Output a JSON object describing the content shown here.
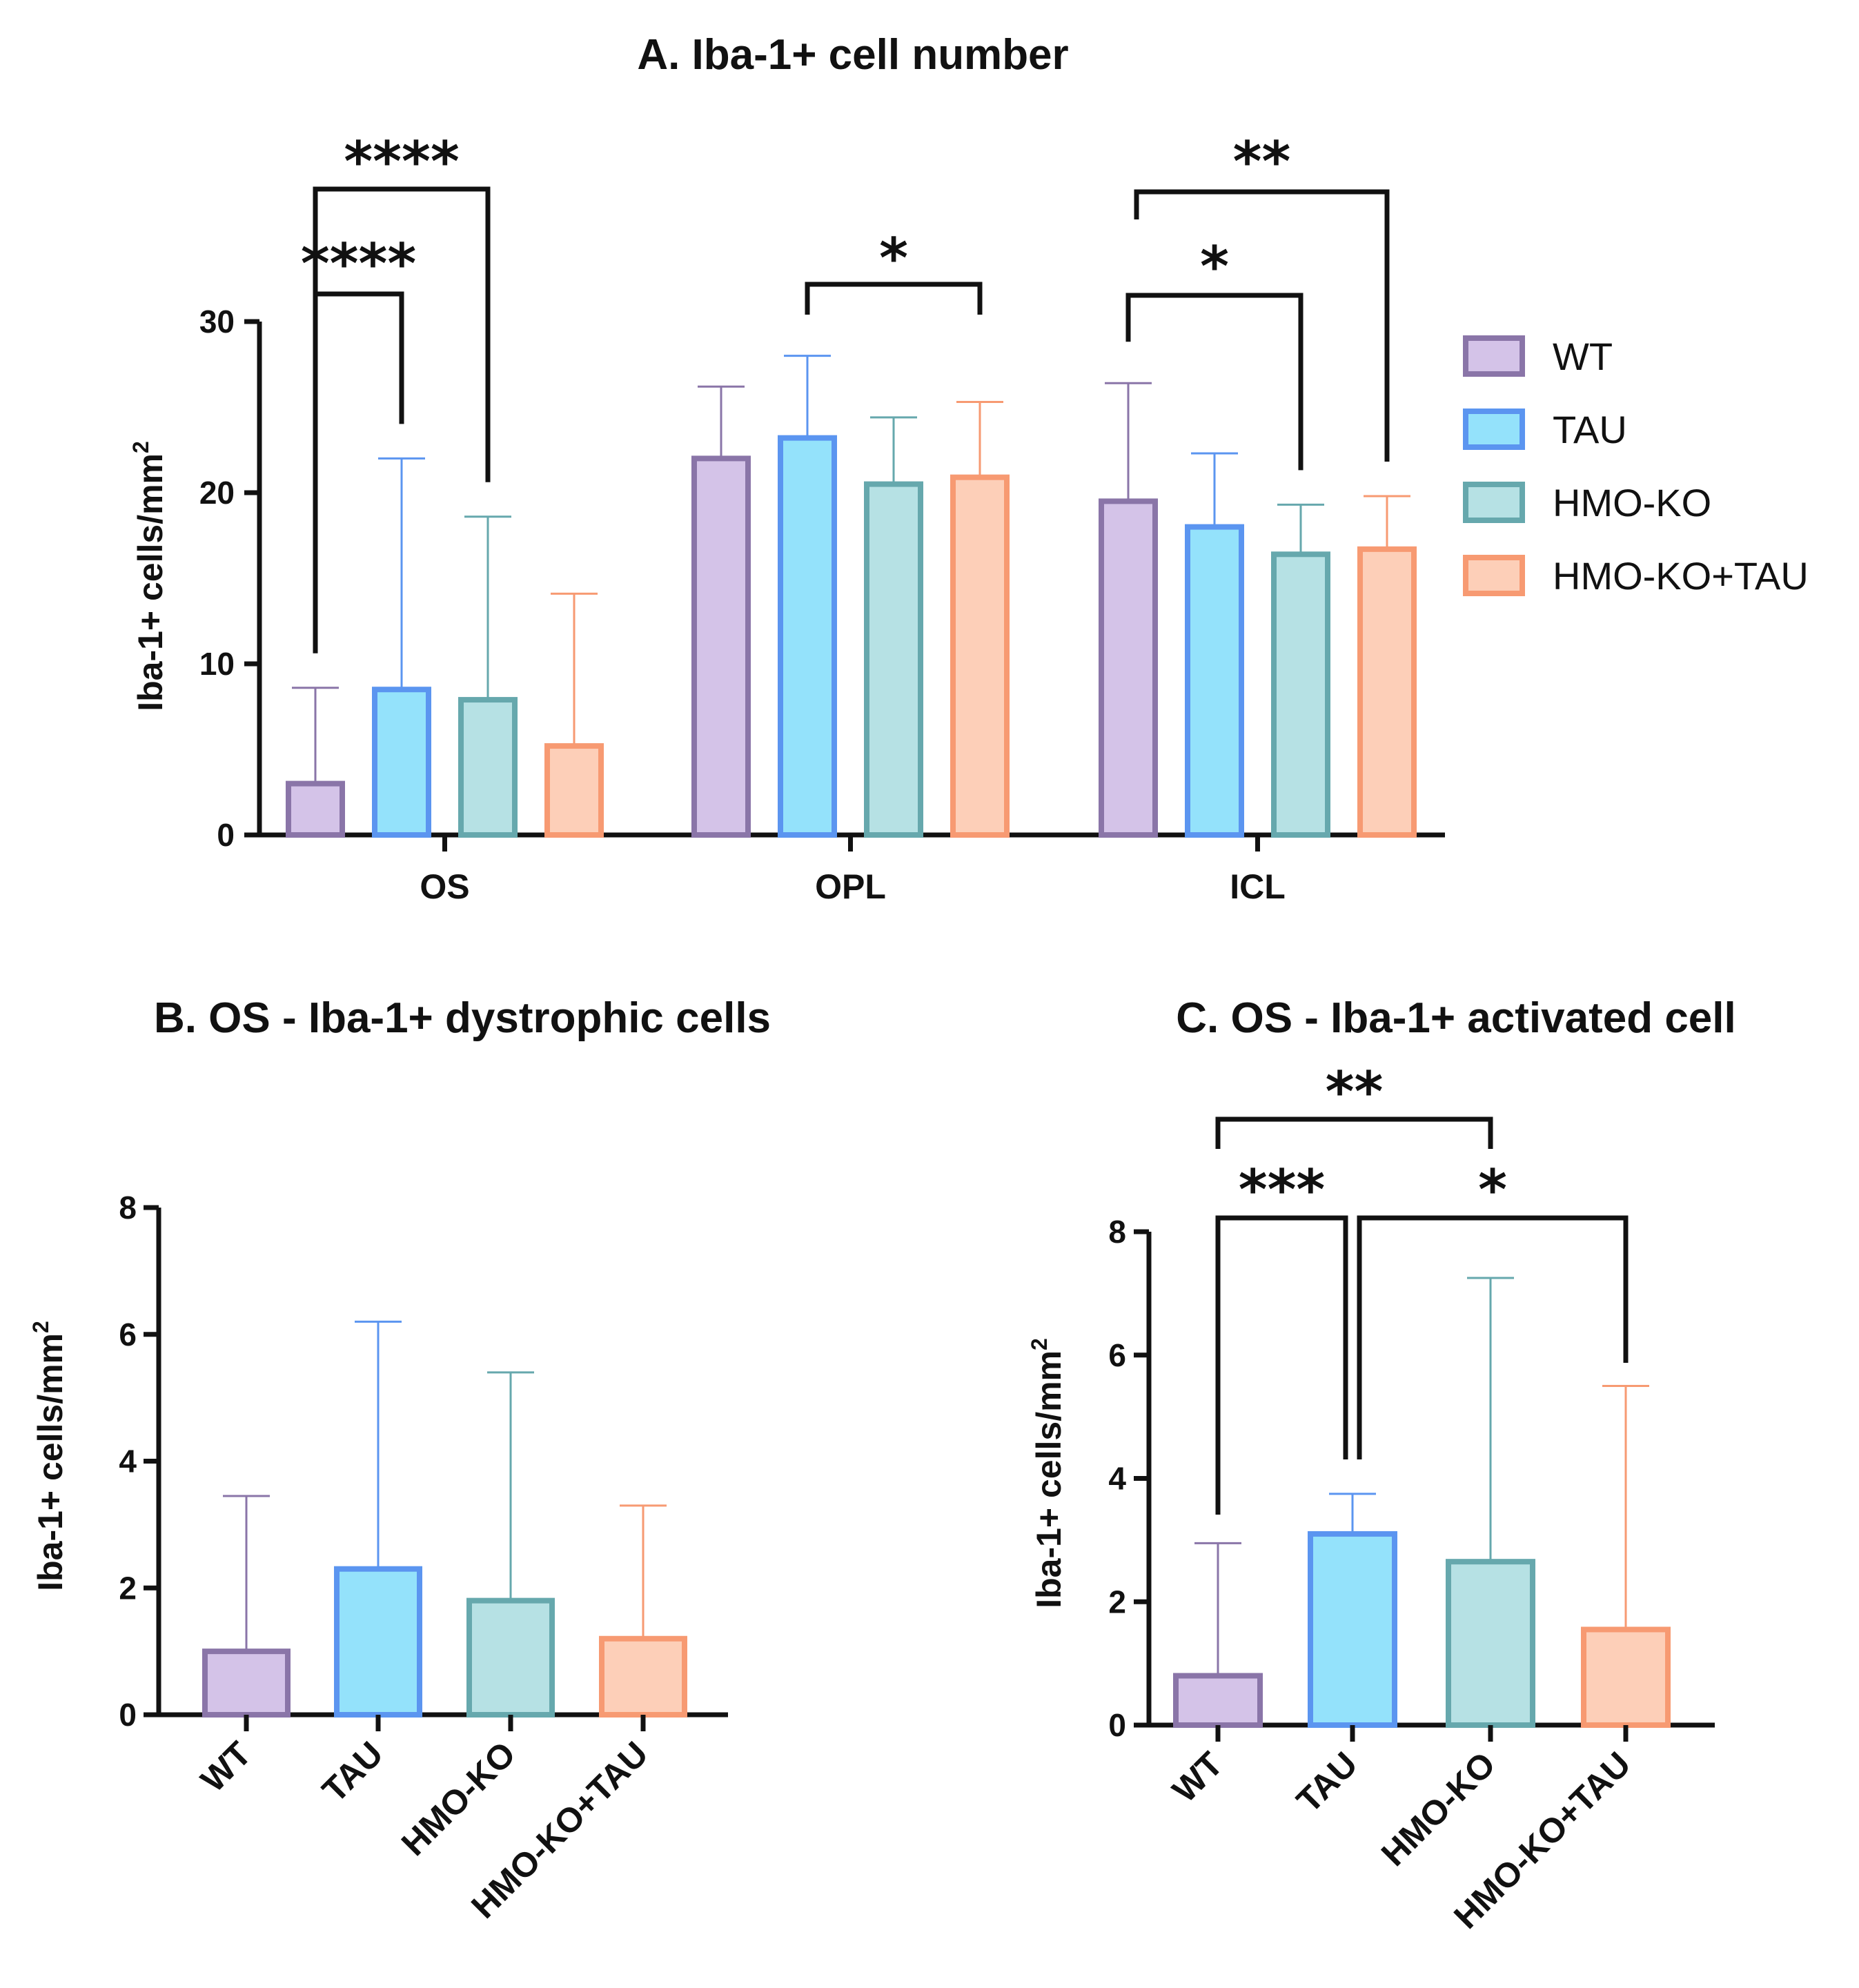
{
  "colors": {
    "WT": {
      "fill": "#d4c3e8",
      "stroke": "#8a75a8"
    },
    "TAU": {
      "fill": "#94e2fb",
      "stroke": "#5b95f0"
    },
    "HMO-KO": {
      "fill": "#b6e1e4",
      "stroke": "#66a8ad"
    },
    "HMO-KO+TAU": {
      "fill": "#fdcfb8",
      "stroke": "#f79a72"
    }
  },
  "legend": [
    "WT",
    "TAU",
    "HMO-KO",
    "HMO-KO+TAU"
  ],
  "axis_unit_base": "Iba-1+ cells/mm",
  "axis_unit_exp": "2",
  "chart_data": [
    {
      "id": "A",
      "type": "bar",
      "title": "A.  Iba-1+ cell number",
      "ylabel": "Iba-1+ cells/mm2",
      "ylim": [
        0,
        30
      ],
      "yticks": [
        "0",
        "10",
        "20",
        "30"
      ],
      "categories": [
        "OS",
        "OPL",
        "ICL"
      ],
      "series": [
        {
          "name": "WT",
          "values": [
            3.0,
            22.0,
            19.5
          ],
          "errors": [
            5.6,
            4.2,
            6.9
          ]
        },
        {
          "name": "TAU",
          "values": [
            8.5,
            23.2,
            18.0
          ],
          "errors": [
            13.5,
            4.8,
            4.3
          ]
        },
        {
          "name": "HMO-KO",
          "values": [
            7.9,
            20.5,
            16.4
          ],
          "errors": [
            10.7,
            3.9,
            2.9
          ]
        },
        {
          "name": "HMO-KO+TAU",
          "values": [
            5.2,
            20.9,
            16.7
          ],
          "errors": [
            8.9,
            4.4,
            3.1
          ]
        }
      ],
      "significance": [
        {
          "from": [
            0,
            0
          ],
          "to": [
            0,
            1
          ],
          "label": "****",
          "level": 2
        },
        {
          "from": [
            0,
            0
          ],
          "to": [
            0,
            2
          ],
          "label": "****",
          "level": 1
        },
        {
          "from": [
            1,
            1
          ],
          "to": [
            1,
            3
          ],
          "label": "*",
          "level": 2
        },
        {
          "from": [
            2,
            0
          ],
          "to": [
            2,
            2
          ],
          "label": "*",
          "level": 2
        },
        {
          "from": [
            2,
            0
          ],
          "to": [
            2,
            3
          ],
          "label": "**",
          "level": 1
        }
      ]
    },
    {
      "id": "B",
      "type": "bar",
      "title": "B.  OS - Iba-1+ dystrophic cells",
      "ylabel": "Iba-1+ cells/mm2",
      "ylim": [
        0,
        8
      ],
      "yticks": [
        "0",
        "2",
        "4",
        "6",
        "8"
      ],
      "categories": [
        "WT",
        "TAU",
        "HMO-KO",
        "HMO-KO+TAU"
      ],
      "values": [
        1.0,
        2.3,
        1.8,
        1.2
      ],
      "errors": [
        2.45,
        3.9,
        3.6,
        2.1
      ]
    },
    {
      "id": "C",
      "type": "bar",
      "title": "C.  OS - Iba-1+ activated cell",
      "ylabel": "Iba-1+ cells/mm2",
      "ylim": [
        0,
        8
      ],
      "yticks": [
        "0",
        "2",
        "4",
        "6",
        "8"
      ],
      "categories": [
        "WT",
        "TAU",
        "HMO-KO",
        "HMO-KO+TAU"
      ],
      "values": [
        0.8,
        3.1,
        2.65,
        1.55
      ],
      "errors": [
        2.15,
        0.65,
        4.6,
        3.95
      ],
      "significance": [
        {
          "from": 0,
          "to": 1,
          "label": "***",
          "level": 2
        },
        {
          "from": 1,
          "to": 3,
          "label": "*",
          "level": 2
        },
        {
          "from": 0,
          "to": 2,
          "label": "**",
          "level": 1
        }
      ]
    }
  ]
}
